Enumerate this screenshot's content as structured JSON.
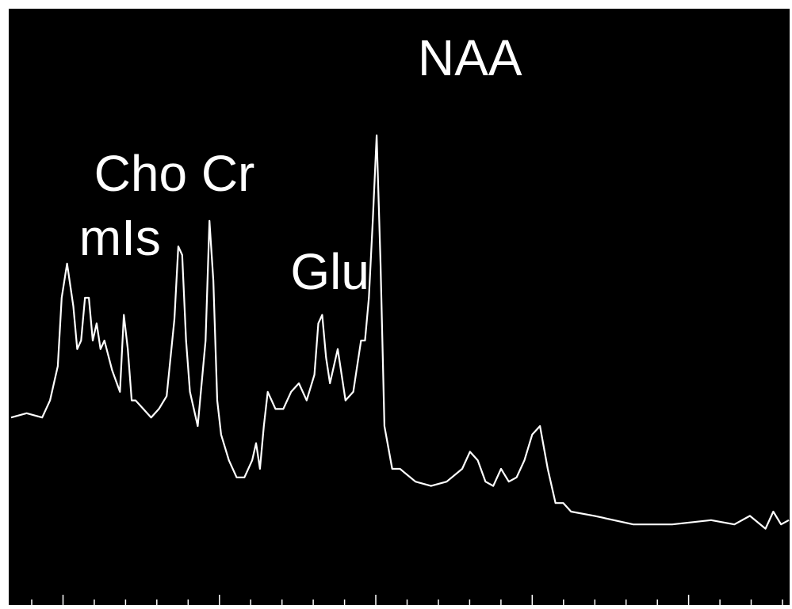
{
  "colors": {
    "background": "#000000",
    "line": "#ffffff",
    "frame": "#ffffff",
    "page": "#ffffff"
  },
  "chart_data": {
    "type": "line",
    "title": "",
    "xlabel": "",
    "ylabel": "",
    "grid": false,
    "legend": "none",
    "xlim": [
      0,
      1
    ],
    "ylim": [
      0,
      1
    ],
    "tick_count": 24,
    "series": [
      {
        "x": [
          0.0,
          0.02,
          0.04,
          0.05,
          0.06,
          0.065,
          0.072,
          0.08,
          0.085,
          0.09,
          0.095,
          0.1,
          0.105,
          0.11,
          0.115,
          0.12,
          0.13,
          0.14,
          0.145,
          0.15,
          0.155,
          0.16,
          0.17,
          0.18,
          0.19,
          0.2,
          0.21,
          0.215,
          0.22,
          0.225,
          0.23,
          0.235,
          0.24,
          0.25,
          0.255,
          0.26,
          0.265,
          0.27,
          0.28,
          0.29,
          0.3,
          0.31,
          0.315,
          0.32,
          0.325,
          0.33,
          0.34,
          0.35,
          0.36,
          0.37,
          0.38,
          0.39,
          0.395,
          0.4,
          0.405,
          0.41,
          0.42,
          0.43,
          0.44,
          0.45,
          0.455,
          0.46,
          0.465,
          0.47,
          0.475,
          0.48,
          0.49,
          0.5,
          0.52,
          0.54,
          0.56,
          0.58,
          0.59,
          0.6,
          0.61,
          0.62,
          0.63,
          0.64,
          0.65,
          0.66,
          0.67,
          0.68,
          0.69,
          0.7,
          0.71,
          0.72,
          0.75,
          0.8,
          0.85,
          0.9,
          0.93,
          0.95,
          0.97,
          0.98,
          0.99,
          1.0
        ],
        "values": [
          0.32,
          0.33,
          0.32,
          0.36,
          0.44,
          0.6,
          0.68,
          0.58,
          0.48,
          0.5,
          0.6,
          0.6,
          0.5,
          0.54,
          0.48,
          0.5,
          0.43,
          0.38,
          0.56,
          0.48,
          0.36,
          0.36,
          0.34,
          0.32,
          0.34,
          0.37,
          0.55,
          0.72,
          0.7,
          0.5,
          0.38,
          0.34,
          0.3,
          0.5,
          0.78,
          0.64,
          0.36,
          0.28,
          0.22,
          0.18,
          0.18,
          0.22,
          0.26,
          0.2,
          0.3,
          0.38,
          0.34,
          0.34,
          0.38,
          0.4,
          0.36,
          0.42,
          0.54,
          0.56,
          0.46,
          0.4,
          0.48,
          0.36,
          0.38,
          0.5,
          0.5,
          0.6,
          0.78,
          0.98,
          0.68,
          0.3,
          0.2,
          0.2,
          0.17,
          0.16,
          0.17,
          0.2,
          0.24,
          0.22,
          0.17,
          0.16,
          0.2,
          0.17,
          0.18,
          0.22,
          0.28,
          0.3,
          0.2,
          0.12,
          0.12,
          0.1,
          0.09,
          0.07,
          0.07,
          0.08,
          0.07,
          0.09,
          0.06,
          0.1,
          0.07,
          0.08
        ]
      }
    ],
    "annotations": [
      {
        "text": "NAA",
        "x": 0.59,
        "y": 1.12
      },
      {
        "text": "Cho Cr",
        "x": 0.21,
        "y": 0.85
      },
      {
        "text": "mIs",
        "x": 0.14,
        "y": 0.7
      },
      {
        "text": "Glu",
        "x": 0.41,
        "y": 0.62
      }
    ]
  }
}
